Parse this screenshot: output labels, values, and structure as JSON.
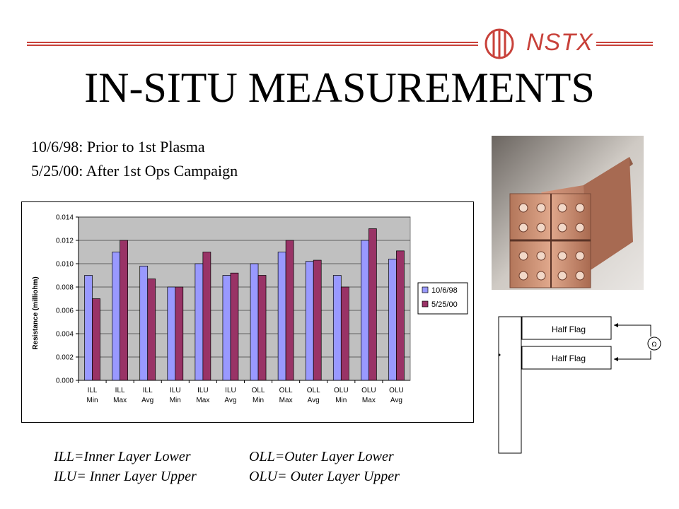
{
  "header": {
    "logo_text": "NSTX",
    "brand_color": "#c8413a"
  },
  "title": "IN-SITU MEASUREMENTS",
  "subtitles": [
    "10/6/98: Prior to 1st Plasma",
    "5/25/00: After 1st Ops Campaign"
  ],
  "chart_data": {
    "type": "bar",
    "title": "",
    "xlabel": "",
    "ylabel": "Resistance (milliohm)",
    "ylim": [
      0,
      0.014
    ],
    "yticks": [
      "0.000",
      "0.002",
      "0.004",
      "0.006",
      "0.008",
      "0.010",
      "0.012",
      "0.014"
    ],
    "grid": true,
    "legend_position": "right",
    "categories": [
      [
        "ILL",
        "Min"
      ],
      [
        "ILL",
        "Max"
      ],
      [
        "ILL",
        "Avg"
      ],
      [
        "ILU",
        "Min"
      ],
      [
        "ILU",
        "Max"
      ],
      [
        "ILU",
        "Avg"
      ],
      [
        "OLL",
        "Min"
      ],
      [
        "OLL",
        "Max"
      ],
      [
        "OLL",
        "Avg"
      ],
      [
        "OLU",
        "Min"
      ],
      [
        "OLU",
        "Max"
      ],
      [
        "OLU",
        "Avg"
      ]
    ],
    "series": [
      {
        "name": "10/6/98",
        "color": "#9999ff",
        "values": [
          0.009,
          0.011,
          0.0098,
          0.008,
          0.01,
          0.009,
          0.01,
          0.011,
          0.0102,
          0.009,
          0.012,
          0.0104
        ]
      },
      {
        "name": "5/25/00",
        "color": "#993366",
        "values": [
          0.007,
          0.012,
          0.0087,
          0.008,
          0.011,
          0.0092,
          0.009,
          0.012,
          0.0103,
          0.008,
          0.013,
          0.0111
        ]
      }
    ],
    "plot_background": "#c0c0c0"
  },
  "diagram": {
    "flag_top_label": "Half Flag",
    "flag_bottom_label": "Half Flag",
    "meter_symbol": "Ω"
  },
  "abbreviations": [
    "ILL=Inner Layer Lower",
    "OLL=Outer Layer Lower",
    "ILU= Inner Layer Upper",
    "OLU= Outer Layer Upper"
  ]
}
